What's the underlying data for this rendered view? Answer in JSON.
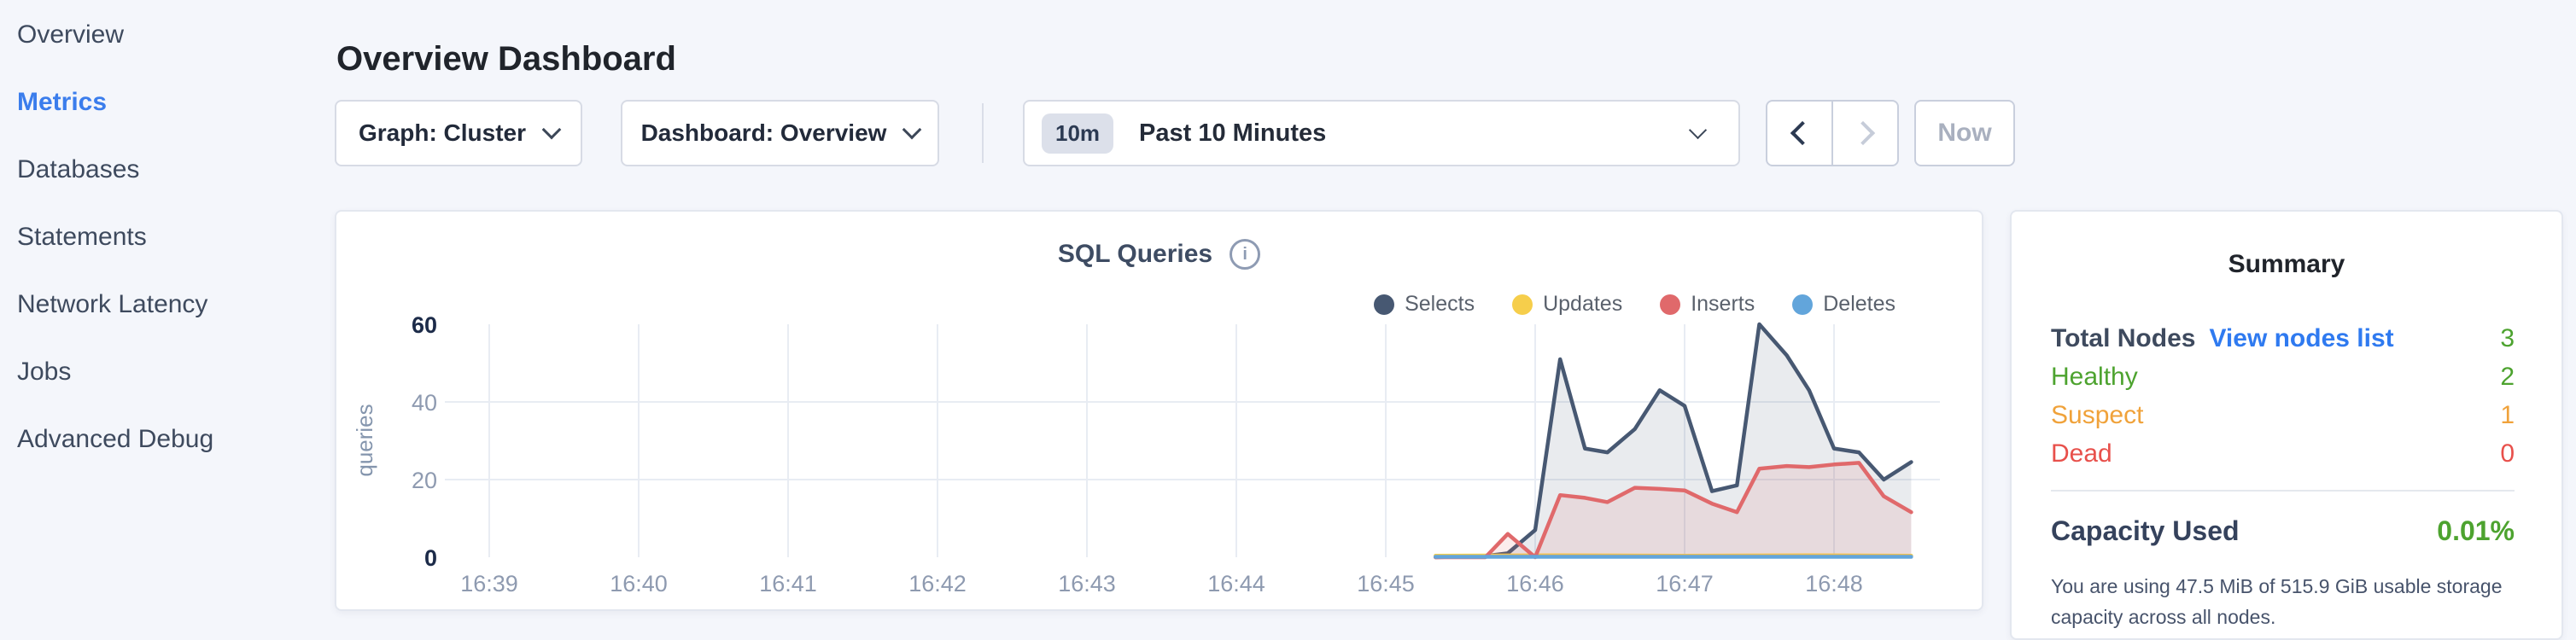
{
  "colors": {
    "sidebar_active_blue": "#3b7dec",
    "link_blue": "#2f7af0",
    "healthy_green": "#4da32f",
    "suspect_orange": "#f0a23a",
    "dead_red": "#e8504b"
  },
  "sidebar": {
    "items": [
      {
        "label": "Overview",
        "active": false
      },
      {
        "label": "Metrics",
        "active": true
      },
      {
        "label": "Databases",
        "active": false
      },
      {
        "label": "Statements",
        "active": false
      },
      {
        "label": "Network Latency",
        "active": false
      },
      {
        "label": "Jobs",
        "active": false
      },
      {
        "label": "Advanced Debug",
        "active": false
      }
    ]
  },
  "header": {
    "title": "Overview Dashboard"
  },
  "toolbar": {
    "graph_dropdown_label": "Graph: Cluster",
    "dashboard_dropdown_label": "Dashboard: Overview",
    "time_badge": "10m",
    "time_label": "Past 10 Minutes",
    "now_label": "Now"
  },
  "chart_data": {
    "type": "area",
    "title": "SQL Queries",
    "ylabel": "queries",
    "ylim": [
      0,
      60
    ],
    "y_ticks": [
      0,
      20,
      40,
      60
    ],
    "x_ticks": [
      "16:39",
      "16:40",
      "16:41",
      "16:42",
      "16:43",
      "16:44",
      "16:45",
      "16:46",
      "16:47",
      "16:48"
    ],
    "x_unit": "seconds after 16:39:00",
    "grid": true,
    "legend_position": "top-right",
    "series": [
      {
        "name": "Selects",
        "color": "#475872",
        "fill": "rgba(71,88,114,0.12)",
        "points": [
          [
            380,
            0
          ],
          [
            400,
            0.3
          ],
          [
            409,
            1
          ],
          [
            420,
            7
          ],
          [
            430,
            51
          ],
          [
            440,
            28
          ],
          [
            449,
            27
          ],
          [
            460,
            33
          ],
          [
            470,
            43
          ],
          [
            480,
            39
          ],
          [
            491,
            17
          ],
          [
            501,
            18.5
          ],
          [
            510,
            60
          ],
          [
            521,
            52
          ],
          [
            530,
            43
          ],
          [
            540,
            28
          ],
          [
            550,
            27
          ],
          [
            560,
            20
          ],
          [
            571,
            24.5
          ]
        ]
      },
      {
        "name": "Updates",
        "color": "#f6ce4b",
        "fill": "rgba(246,206,75,0.12)",
        "points": [
          [
            380,
            0.4
          ],
          [
            430,
            0.5
          ],
          [
            480,
            0.4
          ],
          [
            530,
            0.5
          ],
          [
            571,
            0.4
          ]
        ]
      },
      {
        "name": "Inserts",
        "color": "#e0696b",
        "fill": "rgba(224,105,107,0.13)",
        "points": [
          [
            380,
            0
          ],
          [
            400,
            0
          ],
          [
            409,
            6
          ],
          [
            420,
            0
          ],
          [
            430,
            16
          ],
          [
            440,
            15.3
          ],
          [
            449,
            14.2
          ],
          [
            460,
            17.9
          ],
          [
            470,
            17.6
          ],
          [
            480,
            17.2
          ],
          [
            491,
            13.8
          ],
          [
            501,
            11.6
          ],
          [
            510,
            22.8
          ],
          [
            521,
            23.5
          ],
          [
            530,
            23.2
          ],
          [
            540,
            23.9
          ],
          [
            550,
            24.3
          ],
          [
            560,
            15.7
          ],
          [
            571,
            11.6
          ]
        ]
      },
      {
        "name": "Deletes",
        "color": "#62a5db",
        "fill": "rgba(98,165,219,0.10)",
        "points": [
          [
            380,
            0.1
          ],
          [
            430,
            0.1
          ],
          [
            480,
            0.1
          ],
          [
            530,
            0.1
          ],
          [
            571,
            0.1
          ]
        ]
      }
    ]
  },
  "summary": {
    "title": "Summary",
    "rows": [
      {
        "label": "Total Nodes",
        "link": "View nodes list",
        "value": "3",
        "label_color": "#3e4a5e",
        "value_color": "#4da32f",
        "bold": true
      },
      {
        "label": "Healthy",
        "value": "2",
        "label_color": "#4da32f",
        "value_color": "#4da32f",
        "bold": false
      },
      {
        "label": "Suspect",
        "value": "1",
        "label_color": "#f0a23a",
        "value_color": "#f0a23a",
        "bold": false
      },
      {
        "label": "Dead",
        "value": "0",
        "label_color": "#e8504b",
        "value_color": "#e8504b",
        "bold": false
      }
    ],
    "capacity_label": "Capacity Used",
    "capacity_value": "0.01%",
    "capacity_note": "You are using 47.5 MiB of 515.9 GiB usable storage capacity across all nodes."
  }
}
